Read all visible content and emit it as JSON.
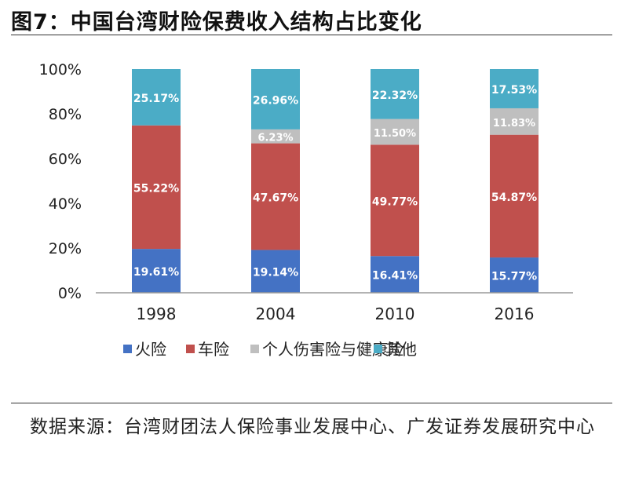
{
  "figure": {
    "title": "图7：中国台湾财险保费收入结构占比变化",
    "source": "数据来源：台湾财团法人保险事业发展中心、广发证券发展研究中心"
  },
  "chart_data": {
    "type": "bar",
    "stacked": true,
    "categories": [
      "1998",
      "2004",
      "2010",
      "2016"
    ],
    "series": [
      {
        "name": "火险",
        "color": "#4472C4",
        "values": [
          19.61,
          19.14,
          16.41,
          15.77
        ],
        "labels": [
          "19.61%",
          "19.14%",
          "16.41%",
          "15.77%"
        ]
      },
      {
        "name": "车险",
        "color": "#C0504D",
        "values": [
          55.22,
          47.67,
          49.77,
          54.87
        ],
        "labels": [
          "55.22%",
          "47.67%",
          "49.77%",
          "54.87%"
        ]
      },
      {
        "name": "个人伤害险与健康险",
        "color": "#BFBFBF",
        "values": [
          0,
          6.23,
          11.5,
          11.83
        ],
        "labels": [
          "",
          "6.23%",
          "11.50%",
          "11.83%"
        ]
      },
      {
        "name": "其他",
        "color": "#4BACC6",
        "values": [
          25.17,
          26.96,
          22.32,
          17.53
        ],
        "labels": [
          "25.17%",
          "26.96%",
          "22.32%",
          "17.53%"
        ]
      }
    ],
    "ylim": [
      0,
      100
    ],
    "yticks": [
      0,
      20,
      40,
      60,
      80,
      100
    ],
    "ytick_labels": [
      "0%",
      "20%",
      "40%",
      "60%",
      "80%",
      "100%"
    ],
    "grid": false,
    "legend_position": "bottom"
  }
}
